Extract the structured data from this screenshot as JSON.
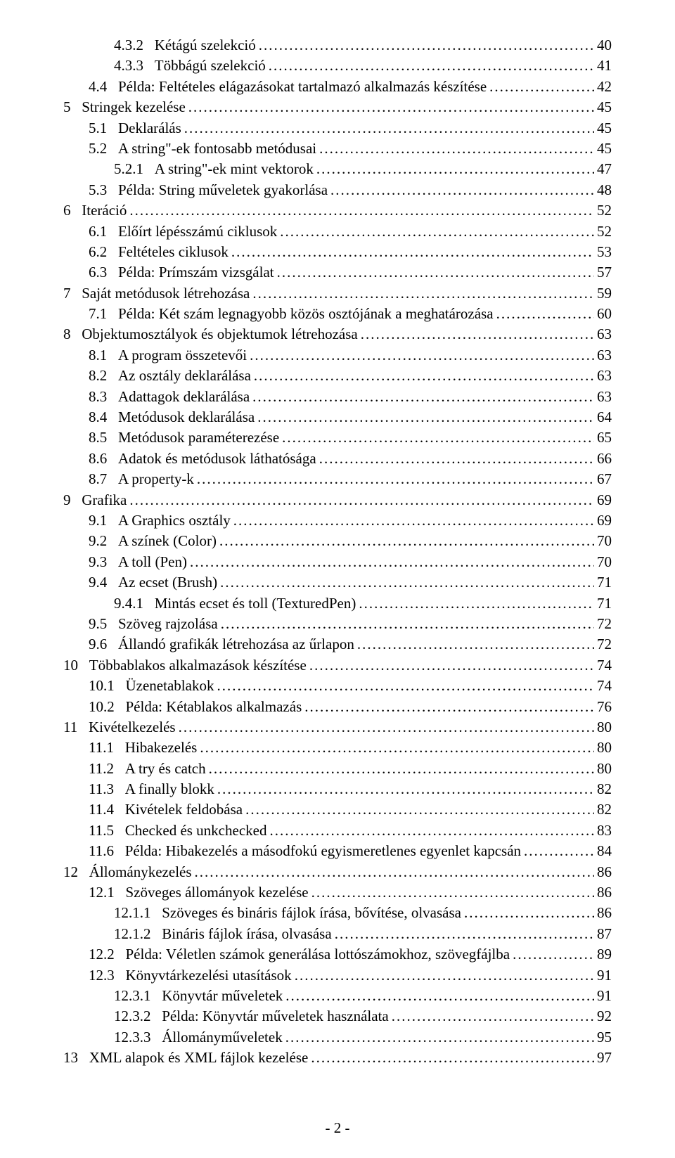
{
  "toc": [
    {
      "indent": 2,
      "num": "4.3.2",
      "title": "Kétágú szelekció",
      "page": "40"
    },
    {
      "indent": 2,
      "num": "4.3.3",
      "title": "Többágú szelekció",
      "page": "41"
    },
    {
      "indent": 1,
      "num": "4.4",
      "title": "Példa: Feltételes elágazásokat tartalmazó alkalmazás készítése",
      "page": "42"
    },
    {
      "indent": 0,
      "num": "5",
      "title": "Stringek kezelése",
      "page": "45"
    },
    {
      "indent": 1,
      "num": "5.1",
      "title": "Deklarálás",
      "page": "45"
    },
    {
      "indent": 1,
      "num": "5.2",
      "title": "A string\"-ek fontosabb metódusai",
      "page": "45"
    },
    {
      "indent": 2,
      "num": "5.2.1",
      "title": "A string\"-ek mint vektorok",
      "page": "47"
    },
    {
      "indent": 1,
      "num": "5.3",
      "title": "Példa: String műveletek gyakorlása",
      "page": "48"
    },
    {
      "indent": 0,
      "num": "6",
      "title": "Iteráció",
      "page": "52"
    },
    {
      "indent": 1,
      "num": "6.1",
      "title": "Előírt lépésszámú ciklusok",
      "page": "52"
    },
    {
      "indent": 1,
      "num": "6.2",
      "title": "Feltételes ciklusok",
      "page": "53"
    },
    {
      "indent": 1,
      "num": "6.3",
      "title": "Példa: Prímszám vizsgálat",
      "page": "57"
    },
    {
      "indent": 0,
      "num": "7",
      "title": "Saját metódusok létrehozása",
      "page": "59"
    },
    {
      "indent": 1,
      "num": "7.1",
      "title": "Példa: Két szám legnagyobb közös osztójának a meghatározása",
      "page": "60"
    },
    {
      "indent": 0,
      "num": "8",
      "title": "Objektumosztályok és objektumok létrehozása",
      "page": "63"
    },
    {
      "indent": 1,
      "num": "8.1",
      "title": "A program összetevői",
      "page": "63"
    },
    {
      "indent": 1,
      "num": "8.2",
      "title": "Az osztály deklarálása",
      "page": "63"
    },
    {
      "indent": 1,
      "num": "8.3",
      "title": "Adattagok deklarálása",
      "page": "63"
    },
    {
      "indent": 1,
      "num": "8.4",
      "title": "Metódusok deklarálása",
      "page": "64"
    },
    {
      "indent": 1,
      "num": "8.5",
      "title": "Metódusok paraméterezése",
      "page": "65"
    },
    {
      "indent": 1,
      "num": "8.6",
      "title": "Adatok és metódusok láthatósága",
      "page": "66"
    },
    {
      "indent": 1,
      "num": "8.7",
      "title": "A property-k",
      "page": "67"
    },
    {
      "indent": 0,
      "num": "9",
      "title": "Grafika",
      "page": "69"
    },
    {
      "indent": 1,
      "num": "9.1",
      "title": "A Graphics osztály",
      "page": "69"
    },
    {
      "indent": 1,
      "num": "9.2",
      "title": "A színek (Color)",
      "page": "70"
    },
    {
      "indent": 1,
      "num": "9.3",
      "title": "A toll (Pen)",
      "page": "70"
    },
    {
      "indent": 1,
      "num": "9.4",
      "title": "Az ecset (Brush)",
      "page": "71"
    },
    {
      "indent": 2,
      "num": "9.4.1",
      "title": "Mintás ecset és toll (TexturedPen)",
      "page": "71"
    },
    {
      "indent": 1,
      "num": "9.5",
      "title": "Szöveg rajzolása",
      "page": "72"
    },
    {
      "indent": 1,
      "num": "9.6",
      "title": "Állandó grafikák létrehozása az űrlapon",
      "page": "72"
    },
    {
      "indent": 0,
      "num": "10",
      "title": "Többablakos alkalmazások készítése",
      "page": "74"
    },
    {
      "indent": 1,
      "num": "10.1",
      "title": "Üzenetablakok",
      "page": "74"
    },
    {
      "indent": 1,
      "num": "10.2",
      "title": "Példa: Kétablakos alkalmazás",
      "page": "76"
    },
    {
      "indent": 0,
      "num": "11",
      "title": "Kivételkezelés",
      "page": "80"
    },
    {
      "indent": 1,
      "num": "11.1",
      "title": "Hibakezelés",
      "page": "80"
    },
    {
      "indent": 1,
      "num": "11.2",
      "title": "A try és catch",
      "page": "80"
    },
    {
      "indent": 1,
      "num": "11.3",
      "title": "A finally blokk",
      "page": "82"
    },
    {
      "indent": 1,
      "num": "11.4",
      "title": "Kivételek feldobása",
      "page": "82"
    },
    {
      "indent": 1,
      "num": "11.5",
      "title": "Checked és unkchecked",
      "page": "83"
    },
    {
      "indent": 1,
      "num": "11.6",
      "title": "Példa: Hibakezelés a másodfokú egyismeretlenes egyenlet kapcsán",
      "page": "84"
    },
    {
      "indent": 0,
      "num": "12",
      "title": "Állománykezelés",
      "page": "86"
    },
    {
      "indent": 1,
      "num": "12.1",
      "title": "Szöveges állományok kezelése",
      "page": "86"
    },
    {
      "indent": 2,
      "num": "12.1.1",
      "title": "Szöveges és bináris fájlok írása, bővítése, olvasása",
      "page": "86"
    },
    {
      "indent": 2,
      "num": "12.1.2",
      "title": "Bináris fájlok írása, olvasása",
      "page": "87"
    },
    {
      "indent": 1,
      "num": "12.2",
      "title": "Példa: Véletlen számok generálása lottószámokhoz, szövegfájlba",
      "page": "89"
    },
    {
      "indent": 1,
      "num": "12.3",
      "title": "Könyvtárkezelési utasítások",
      "page": "91"
    },
    {
      "indent": 2,
      "num": "12.3.1",
      "title": "Könyvtár műveletek",
      "page": "91"
    },
    {
      "indent": 2,
      "num": "12.3.2",
      "title": "Példa: Könyvtár műveletek használata",
      "page": "92"
    },
    {
      "indent": 2,
      "num": "12.3.3",
      "title": "Állományműveletek",
      "page": "95"
    },
    {
      "indent": 0,
      "num": "13",
      "title": "XML alapok és XML fájlok kezelése",
      "page": "97"
    }
  ],
  "footer_page": "- 2 -"
}
